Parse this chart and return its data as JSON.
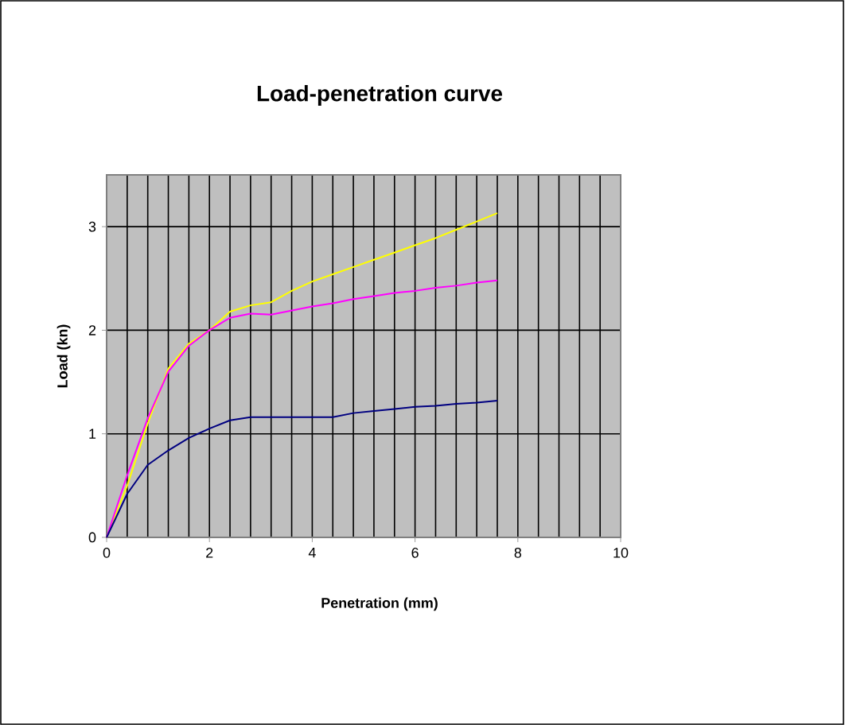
{
  "chart_data": {
    "type": "line",
    "title": "Load-penetration curve",
    "xlabel": "Penetration (mm)",
    "ylabel": "Load (kn)",
    "x": [
      0,
      0.4,
      0.8,
      1.2,
      1.6,
      2.0,
      2.4,
      2.8,
      3.2,
      3.6,
      4.0,
      4.4,
      4.8,
      5.2,
      5.6,
      6.0,
      6.4,
      6.8,
      7.2,
      7.6
    ],
    "series": [
      {
        "color": "#ffff00",
        "values": [
          0,
          0.5,
          1.1,
          1.63,
          1.87,
          2.0,
          2.18,
          2.24,
          2.27,
          2.38,
          2.47,
          2.54,
          2.61,
          2.68,
          2.75,
          2.82,
          2.89,
          2.97,
          3.05,
          3.13
        ]
      },
      {
        "color": "#ff00ff",
        "values": [
          0,
          0.6,
          1.15,
          1.6,
          1.85,
          2.0,
          2.12,
          2.16,
          2.15,
          2.19,
          2.23,
          2.26,
          2.3,
          2.33,
          2.36,
          2.38,
          2.41,
          2.43,
          2.46,
          2.48
        ]
      },
      {
        "color": "#000080",
        "values": [
          0,
          0.42,
          0.7,
          0.84,
          0.96,
          1.05,
          1.13,
          1.16,
          1.16,
          1.16,
          1.16,
          1.16,
          1.2,
          1.22,
          1.24,
          1.26,
          1.27,
          1.29,
          1.3,
          1.32
        ]
      }
    ],
    "xlim": [
      0,
      10
    ],
    "ylim": [
      0,
      3.5
    ],
    "xticks": [
      0,
      2,
      4,
      6,
      8,
      10
    ],
    "yticks": [
      0,
      1,
      2,
      3
    ],
    "grid": true,
    "marker": "none",
    "line_style": "solid"
  }
}
